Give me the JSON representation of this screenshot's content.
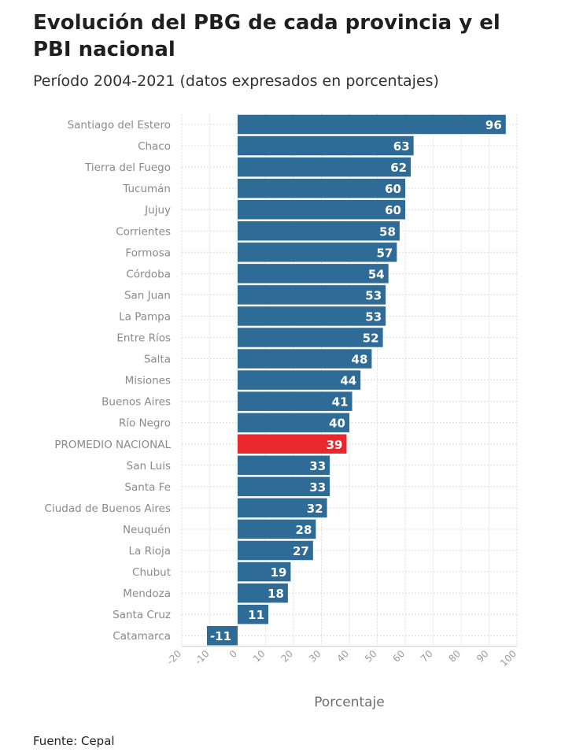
{
  "header": {
    "title": "Evolución del PBG de cada provincia y el PBI nacional",
    "subtitle": "Período 2004-2021 (datos expresados en porcentajes)"
  },
  "footer": {
    "source": "Fuente: Cepal"
  },
  "colors": {
    "bar": "#2e6b96",
    "highlight": "#e8282e",
    "grid": "#dcdcdc"
  },
  "chart_data": {
    "type": "bar",
    "orientation": "horizontal",
    "categories": [
      "Santiago del Estero",
      "Chaco",
      "Tierra del Fuego",
      "Tucumán",
      "Jujuy",
      "Corrientes",
      "Formosa",
      "Córdoba",
      "San Juan",
      "La Pampa",
      "Entre Ríos",
      "Salta",
      "Misiones",
      "Buenos Aires",
      "Río Negro",
      "PROMEDIO NACIONAL",
      "San Luis",
      "Santa Fe",
      "Ciudad de Buenos Aires",
      "Neuquén",
      "La Rioja",
      "Chubut",
      "Mendoza",
      "Santa Cruz",
      "Catamarca"
    ],
    "values": [
      96,
      63,
      62,
      60,
      60,
      58,
      57,
      54,
      53,
      53,
      52,
      48,
      44,
      41,
      40,
      39,
      33,
      33,
      32,
      28,
      27,
      19,
      18,
      11,
      -11
    ],
    "highlight_category": "PROMEDIO NACIONAL",
    "xlabel": "Porcentaje",
    "xlim": [
      -20,
      100
    ],
    "xticks": [
      -20,
      -10,
      0,
      10,
      20,
      30,
      40,
      50,
      60,
      70,
      80,
      90,
      100
    ],
    "grid": true,
    "data_labels": true
  }
}
